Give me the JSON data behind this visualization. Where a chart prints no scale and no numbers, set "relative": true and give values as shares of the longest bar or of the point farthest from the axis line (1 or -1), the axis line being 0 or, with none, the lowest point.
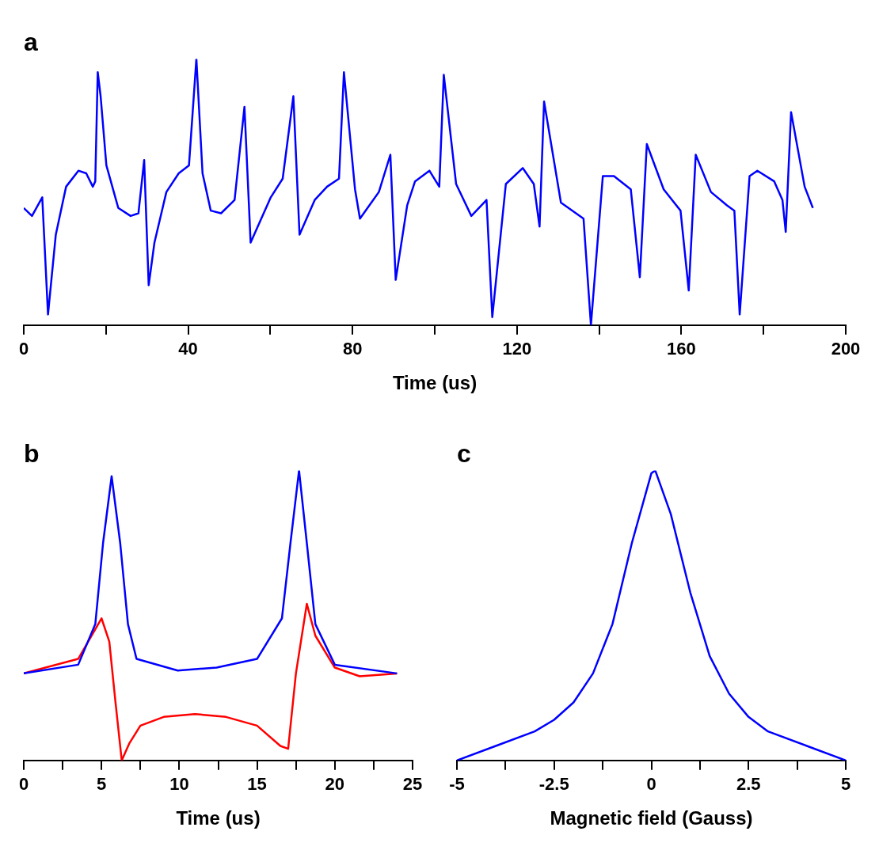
{
  "chart_data": [
    {
      "type": "line",
      "title": "a",
      "xlabel": "Time (us)",
      "relative": true,
      "marker": "none",
      "line_style": "solid",
      "xlim": [
        0,
        200
      ],
      "xticks": [
        0,
        {
          "value": 20,
          "label": null
        },
        40,
        {
          "value": 60,
          "label": null
        },
        80,
        {
          "value": 100,
          "label": null
        },
        120,
        {
          "value": 140,
          "label": null
        },
        160,
        {
          "value": 180,
          "label": null
        },
        200
      ],
      "x": [
        0,
        2,
        4.5,
        5.9,
        7.8,
        10.3,
        13.3,
        15.2,
        16.8,
        17.4,
        18,
        18.7,
        20.1,
        23,
        26,
        27.9,
        29.3,
        30.4,
        31.8,
        34.7,
        37.7,
        40.2,
        42,
        43.5,
        45.5,
        48,
        51.3,
        53.7,
        55.2,
        60.1,
        63,
        65.6,
        67.1,
        70.8,
        73.8,
        76.7,
        77.9,
        80.6,
        81.8,
        86.4,
        89.2,
        90.5,
        93.3,
        95.2,
        98.7,
        101.1,
        102.2,
        105.2,
        108.9,
        112.6,
        114,
        117.3,
        121.4,
        124.1,
        125.5,
        126.6,
        130.7,
        136.2,
        138,
        140.9,
        143.6,
        147.7,
        149.9,
        151.6,
        155.7,
        159.8,
        161.8,
        163.5,
        167.2,
        171.1,
        172.9,
        174.2,
        176.6,
        178.5,
        182.6,
        184.6,
        185.4,
        186.7,
        190,
        192
      ],
      "series": [
        {
          "color": "#0000ff",
          "values": [
            0.44,
            0.41,
            0.48,
            0.04,
            0.34,
            0.52,
            0.58,
            0.57,
            0.52,
            0.54,
            0.95,
            0.86,
            0.6,
            0.44,
            0.41,
            0.42,
            0.62,
            0.15,
            0.31,
            0.5,
            0.57,
            0.6,
            1.0,
            0.57,
            0.43,
            0.42,
            0.47,
            0.82,
            0.31,
            0.48,
            0.55,
            0.86,
            0.34,
            0.47,
            0.52,
            0.55,
            0.95,
            0.51,
            0.4,
            0.5,
            0.64,
            0.17,
            0.45,
            0.54,
            0.58,
            0.52,
            0.94,
            0.53,
            0.41,
            0.47,
            0.03,
            0.53,
            0.59,
            0.53,
            0.37,
            0.84,
            0.46,
            0.4,
            0,
            0.56,
            0.56,
            0.51,
            0.18,
            0.68,
            0.51,
            0.43,
            0.13,
            0.64,
            0.5,
            0.45,
            0.43,
            0.04,
            0.56,
            0.58,
            0.54,
            0.47,
            0.35,
            0.8,
            0.52,
            0.44
          ]
        }
      ]
    },
    {
      "type": "line",
      "title": "b",
      "xlabel": "Time (us)",
      "relative": true,
      "marker": "none",
      "line_style": "solid",
      "xlim": [
        0,
        25
      ],
      "xticks": [
        0,
        {
          "value": 2.5,
          "label": null
        },
        5,
        {
          "value": 7.5,
          "label": null
        },
        10,
        {
          "value": 12.5,
          "label": null
        },
        15,
        {
          "value": 17.5,
          "label": null
        },
        20,
        {
          "value": 22.5,
          "label": null
        },
        25
      ],
      "series": [
        {
          "color": "#0000ff",
          "x": [
            0,
            3.5,
            4.6,
            5.1,
            5.65,
            6.2,
            6.7,
            7.25,
            9.9,
            12.4,
            15,
            16.6,
            17.15,
            17.7,
            18.2,
            18.75,
            20,
            24
          ],
          "values": [
            0.3,
            0.33,
            0.47,
            0.75,
            0.98,
            0.75,
            0.47,
            0.35,
            0.31,
            0.32,
            0.35,
            0.49,
            0.75,
            1.0,
            0.75,
            0.47,
            0.33,
            0.3
          ]
        },
        {
          "color": "#ff0000",
          "x": [
            0,
            3.5,
            5,
            5.5,
            5.9,
            6.3,
            6.8,
            7.5,
            9,
            11,
            13,
            15,
            16.5,
            17,
            17.5,
            18.2,
            18.75,
            20,
            21.6,
            24
          ],
          "values": [
            0.3,
            0.35,
            0.49,
            0.41,
            0.2,
            0,
            0.06,
            0.12,
            0.15,
            0.16,
            0.15,
            0.12,
            0.05,
            0.04,
            0.3,
            0.54,
            0.43,
            0.32,
            0.29,
            0.3
          ]
        }
      ]
    },
    {
      "type": "line",
      "title": "c",
      "xlabel": "Magnetic field (Gauss)",
      "relative": true,
      "marker": "none",
      "line_style": "solid",
      "xlim": [
        -5,
        5
      ],
      "xticks": [
        -5,
        {
          "value": -3.75,
          "label": null
        },
        -2.5,
        {
          "value": -1.25,
          "label": null
        },
        0,
        {
          "value": 1.25,
          "label": null
        },
        2.5,
        {
          "value": 3.75,
          "label": null
        },
        5
      ],
      "x": [
        -5,
        -4,
        -3,
        -2.5,
        -2,
        -1.5,
        -1,
        -0.5,
        0,
        0.1,
        0.5,
        1,
        1.5,
        2,
        2.5,
        3,
        4,
        5
      ],
      "series": [
        {
          "color": "#0000ff",
          "values": [
            0,
            0.05,
            0.1,
            0.14,
            0.2,
            0.3,
            0.47,
            0.75,
            0.99,
            1.0,
            0.85,
            0.58,
            0.36,
            0.23,
            0.15,
            0.1,
            0.05,
            0
          ]
        }
      ]
    }
  ]
}
